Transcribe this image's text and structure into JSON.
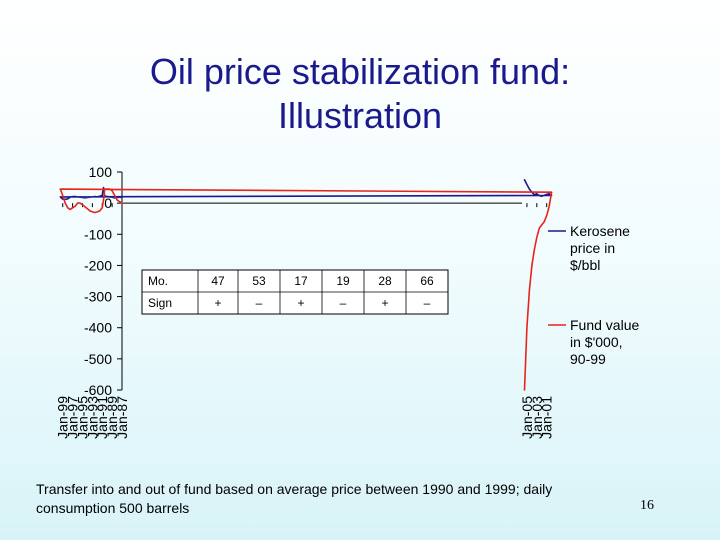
{
  "slide": {
    "title_line1": "Oil price stabilization fund:",
    "title_line2": "Illustration",
    "footnote": "Transfer into and out of fund based on average price between 1990 and 1999; daily consumption 500 barrels",
    "page_number": "16"
  },
  "colors": {
    "kerosene": "#1a1a8c",
    "fund": "#e8231a",
    "axis": "#000000"
  },
  "chart_data": {
    "type": "line",
    "title": "",
    "xlabel": "",
    "ylabel": "",
    "ylim": [
      -600,
      100
    ],
    "yticks": [
      100,
      0,
      -100,
      -200,
      -300,
      -400,
      -500,
      -600
    ],
    "xlim": [
      "Jan-87",
      "Jan-06"
    ],
    "xticks": [
      "Jan-87",
      "Jan-89",
      "Jan-91",
      "Jan-93",
      "Jan-95",
      "Jan-97",
      "Jan-99",
      "Jan-01",
      "Jan-03",
      "Jan-05"
    ],
    "grid": false,
    "legend_position": "right",
    "series": [
      {
        "name": "Kerosene price in $/bbl",
        "color": "#1a1a8c",
        "x": [
          "Jan-87",
          "Jul-87",
          "Jan-88",
          "Jul-88",
          "Jan-89",
          "Jul-89",
          "Jan-90",
          "Jul-90",
          "Oct-90",
          "Jan-91",
          "Jul-91",
          "Jan-92",
          "Jul-92",
          "Jan-93",
          "Jul-93",
          "Jan-94",
          "Jul-94",
          "Jan-95",
          "Jul-95",
          "Jan-96",
          "Jul-96",
          "Jan-97",
          "Jul-97",
          "Jan-98",
          "Jul-98",
          "Jan-99",
          "Jul-99",
          "Jan-00",
          "Jul-00",
          "Jan-01",
          "Jul-01",
          "Jan-02",
          "Jul-02",
          "Jan-03",
          "Jul-03",
          "Jan-04",
          "Jul-04",
          "Jan-05",
          "Jul-05"
        ],
        "y": [
          18,
          19,
          18,
          17,
          19,
          20,
          21,
          22,
          50,
          25,
          22,
          20,
          21,
          20,
          19,
          18,
          17,
          18,
          19,
          20,
          21,
          21,
          19,
          14,
          12,
          13,
          20,
          25,
          30,
          28,
          25,
          22,
          24,
          30,
          27,
          35,
          45,
          60,
          75
        ]
      },
      {
        "name": "Fund value in $'000, 90-99",
        "color": "#e8231a",
        "x": [
          "Jan-87",
          "Jul-87",
          "Jan-88",
          "Jul-88",
          "Jan-89",
          "Jul-89",
          "Jan-90",
          "Jul-90",
          "Oct-90",
          "Jan-91",
          "Jul-91",
          "Jan-92",
          "Jul-92",
          "Jan-93",
          "Jul-93",
          "Jan-94",
          "Jul-94",
          "Jan-95",
          "Jul-95",
          "Jan-96",
          "Jul-96",
          "Jan-97",
          "Jul-97",
          "Jan-98",
          "Jul-98",
          "Jan-99",
          "Jul-99",
          "Jan-00",
          "Jul-00",
          "Jan-01",
          "Jul-01",
          "Jan-02",
          "Jul-02",
          "Jan-03",
          "Jul-03",
          "Jan-04",
          "Jul-04",
          "Jan-05",
          "Jul-05"
        ],
        "y": [
          0,
          5,
          10,
          25,
          40,
          45,
          45,
          45,
          10,
          -15,
          -25,
          -28,
          -30,
          -28,
          -25,
          -18,
          -12,
          -5,
          0,
          0,
          -10,
          -15,
          -20,
          -15,
          0,
          25,
          45,
          35,
          -10,
          -40,
          -60,
          -70,
          -80,
          -110,
          -150,
          -200,
          -280,
          -400,
          -600
        ]
      }
    ],
    "table": {
      "rows": [
        [
          "Mo.",
          "47",
          "53",
          "17",
          "19",
          "28",
          "66"
        ],
        [
          "Sign",
          "+",
          "–",
          "+",
          "–",
          "+",
          "–"
        ]
      ]
    }
  }
}
